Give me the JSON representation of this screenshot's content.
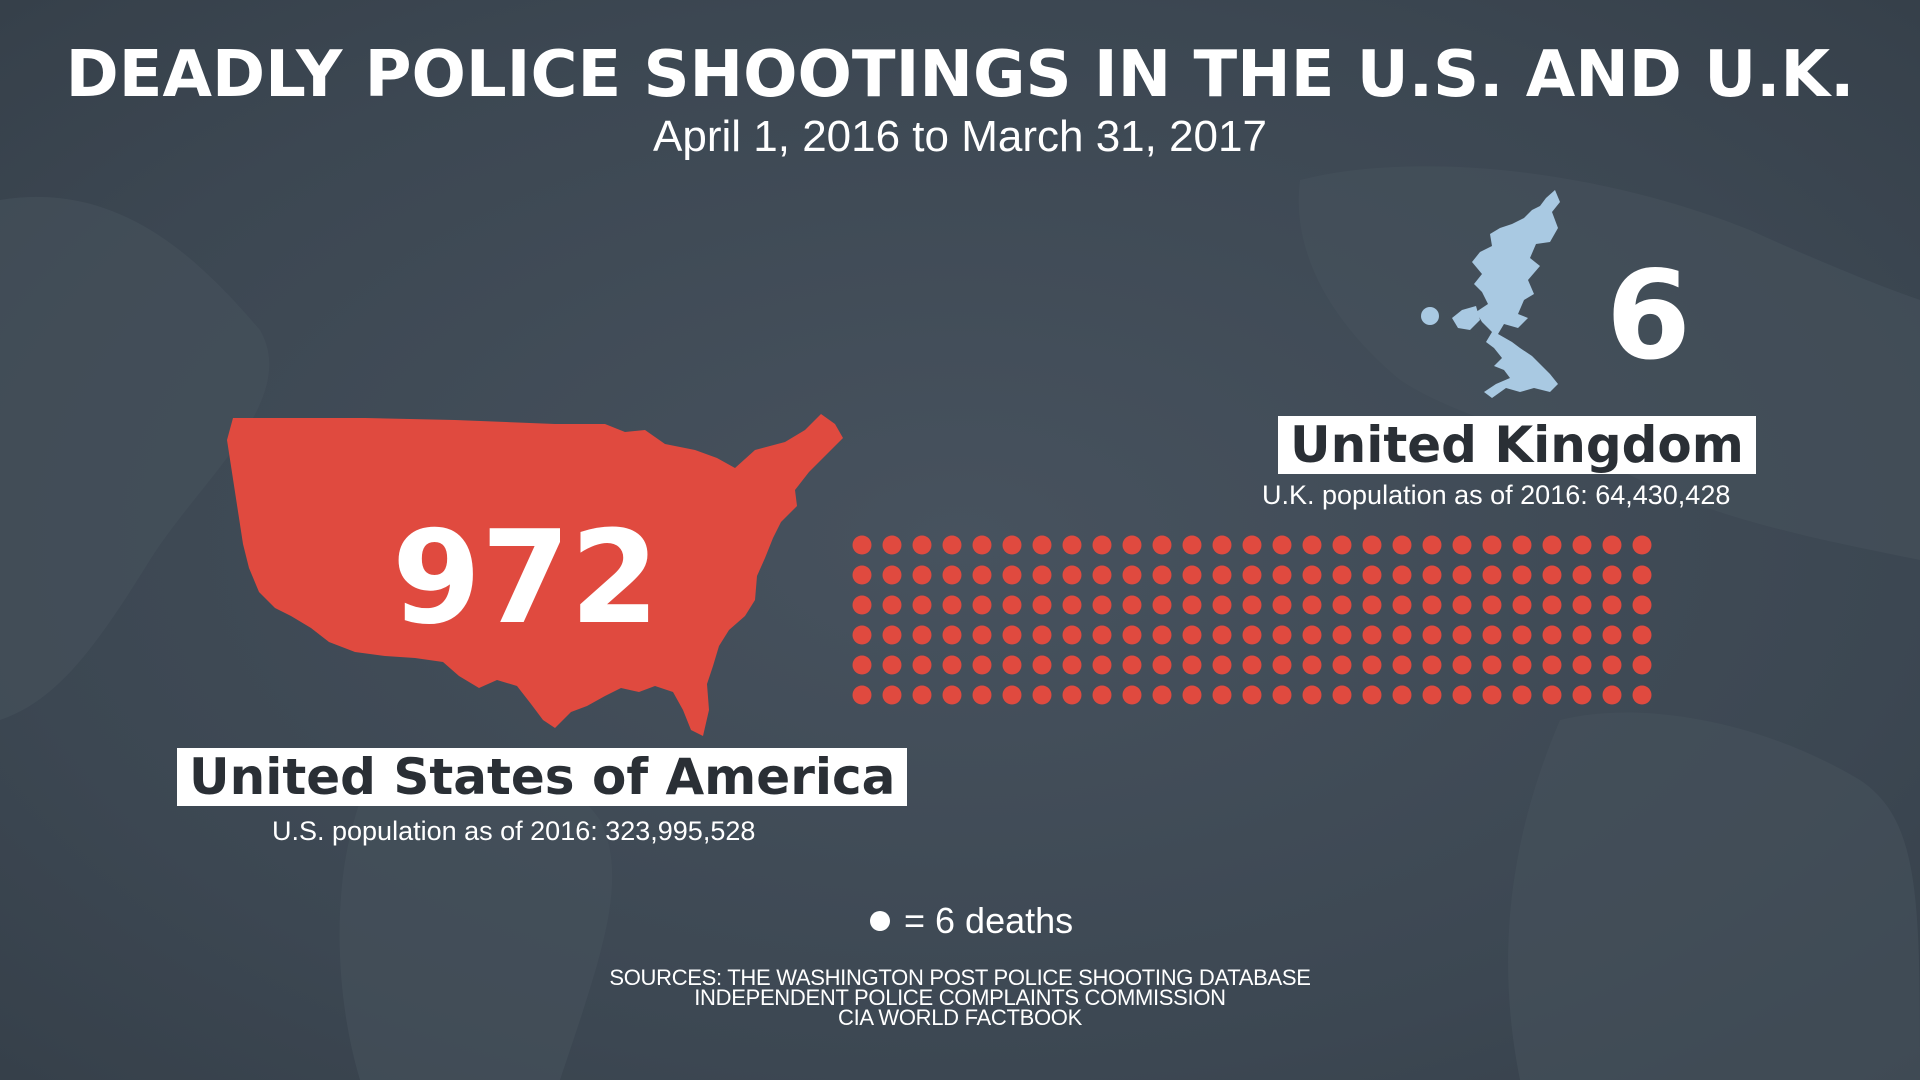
{
  "title": "DEADLY POLICE SHOOTINGS IN THE U.S. AND U.K.",
  "subtitle": "April 1, 2016 to March 31, 2017",
  "colors": {
    "us": "#e04a3f",
    "uk": "#a9c9e2",
    "background": "#3f4a55",
    "text": "#ffffff"
  },
  "legend": {
    "text": "= 6 deaths",
    "unit_deaths": 6
  },
  "sources": [
    "SOURCES: THE WASHINGTON POST POLICE SHOOTING DATABASE",
    "INDEPENDENT POLICE COMPLAINTS COMMISSION",
    "CIA WORLD FACTBOOK"
  ],
  "chart_data": {
    "type": "bar",
    "title": "DEADLY POLICE SHOOTINGS IN THE U.S. AND U.K.",
    "subtitle": "April 1, 2016 to March 31, 2017",
    "categories": [
      "United States of America",
      "United Kingdom"
    ],
    "values": [
      972,
      6
    ],
    "value_labels": [
      "972",
      "6"
    ],
    "populations": [
      "U.S. population as of 2016: 323,995,528",
      "U.K. population as of 2016: 64,430,428"
    ],
    "dots_per_death": 6,
    "dot_counts": [
      162,
      1
    ],
    "colors": [
      "#e04a3f",
      "#a9c9e2"
    ]
  }
}
